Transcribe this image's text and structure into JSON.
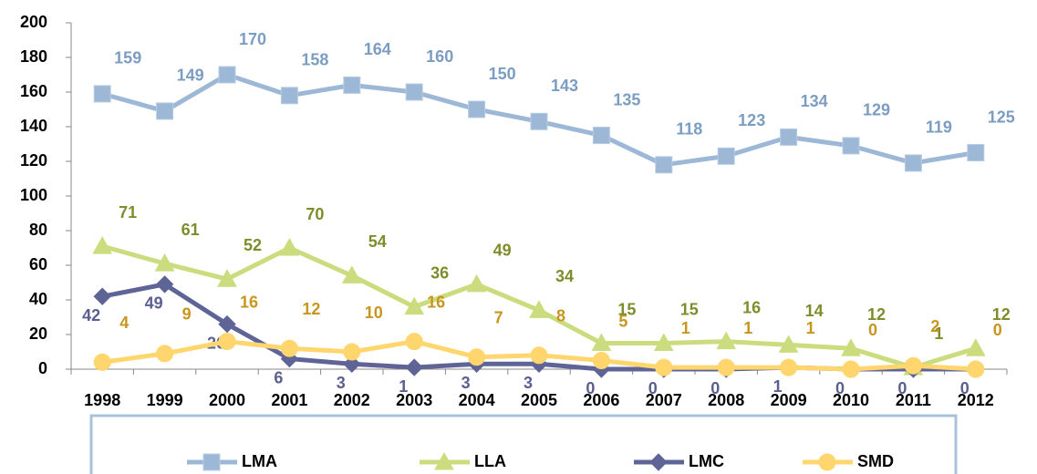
{
  "chart_data": {
    "type": "line",
    "categories": [
      "1998",
      "1999",
      "2000",
      "2001",
      "2002",
      "2003",
      "2004",
      "2005",
      "2006",
      "2007",
      "2008",
      "2009",
      "2010",
      "2011",
      "2012"
    ],
    "series": [
      {
        "name": "LMA",
        "color": "#9db8d6",
        "label_color": "#7b9dc2",
        "marker": "square",
        "values": [
          159,
          149,
          170,
          158,
          164,
          160,
          150,
          143,
          135,
          118,
          123,
          134,
          129,
          119,
          125
        ]
      },
      {
        "name": "LLA",
        "color": "#cadc7e",
        "label_color": "#7f8c2b",
        "marker": "triangle",
        "values": [
          71,
          61,
          52,
          70,
          54,
          36,
          49,
          34,
          15,
          15,
          16,
          14,
          12,
          1,
          12
        ]
      },
      {
        "name": "LMC",
        "color": "#5f6496",
        "label_color": "#5a5f8e",
        "marker": "diamond",
        "values": [
          42,
          49,
          26,
          6,
          3,
          1,
          3,
          3,
          0,
          0,
          0,
          1,
          0,
          0,
          0
        ]
      },
      {
        "name": "SMD",
        "color": "#ffd66e",
        "label_color": "#c8961e",
        "marker": "circle",
        "values": [
          4,
          9,
          16,
          12,
          10,
          16,
          7,
          8,
          5,
          1,
          1,
          1,
          0,
          2,
          0
        ]
      }
    ],
    "ylim": [
      0,
      200
    ],
    "yticks": [
      0,
      20,
      40,
      60,
      80,
      100,
      120,
      140,
      160,
      180,
      200
    ],
    "grid": false,
    "legend": "bottom"
  }
}
